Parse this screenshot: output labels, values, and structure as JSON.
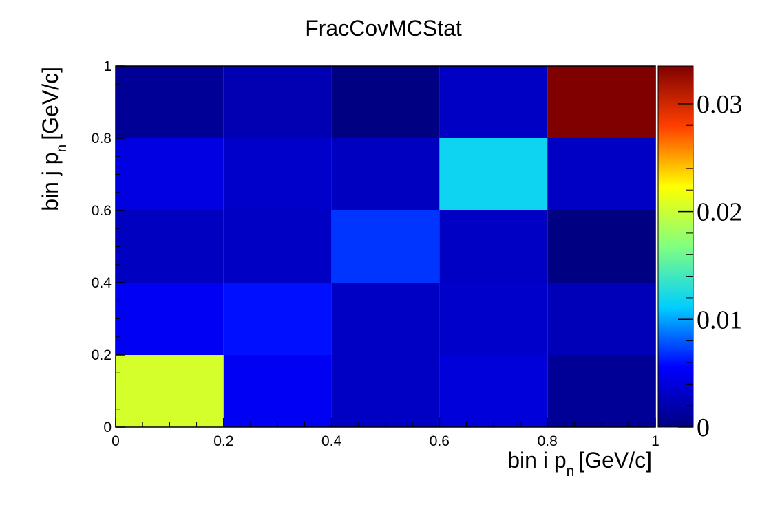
{
  "chart_data": {
    "type": "heatmap",
    "title": "FracCovMCStat",
    "xlabel": {
      "main": "bin i p",
      "sub": "n",
      "unit": "[GeV/c]"
    },
    "ylabel": {
      "main": "bin j p",
      "sub": "n",
      "unit": "[GeV/c]"
    },
    "x_edges": [
      0,
      0.2,
      0.4,
      0.6,
      0.8,
      1
    ],
    "y_edges": [
      0,
      0.2,
      0.4,
      0.6,
      0.8,
      1
    ],
    "xlim": [
      0,
      1
    ],
    "ylim": [
      0,
      1
    ],
    "x_ticks": [
      {
        "value": 0,
        "label": "0"
      },
      {
        "value": 0.2,
        "label": "0.2"
      },
      {
        "value": 0.4,
        "label": "0.4"
      },
      {
        "value": 0.6,
        "label": "0.6"
      },
      {
        "value": 0.8,
        "label": "0.8"
      },
      {
        "value": 1,
        "label": "1"
      }
    ],
    "y_ticks": [
      {
        "value": 0,
        "label": "0"
      },
      {
        "value": 0.2,
        "label": "0.2"
      },
      {
        "value": 0.4,
        "label": "0.4"
      },
      {
        "value": 0.6,
        "label": "0.6"
      },
      {
        "value": 0.8,
        "label": "0.8"
      },
      {
        "value": 1,
        "label": "1"
      }
    ],
    "values": [
      [
        0.0205,
        0.005,
        0.003,
        0.004,
        0.001
      ],
      [
        0.005,
        0.006,
        0.003,
        0.0033,
        0.0025
      ],
      [
        0.0028,
        0.003,
        0.007,
        0.003,
        0.0001
      ],
      [
        0.0042,
        0.0033,
        0.0028,
        0.0118,
        0.003
      ],
      [
        0.001,
        0.0022,
        0.0001,
        0.003,
        0.0335
      ]
    ],
    "values_layout": "values[row][col], row 0 = lowest y bin, col 0 = lowest x bin",
    "zlim": [
      0,
      0.0335
    ],
    "colorbar_ticks": [
      {
        "value": 0,
        "label": "0"
      },
      {
        "value": 0.01,
        "label": "0.01"
      },
      {
        "value": 0.02,
        "label": "0.02"
      },
      {
        "value": 0.03,
        "label": "0.03"
      }
    ],
    "colormap": [
      "#000080",
      "#0000ff",
      "#00cfff",
      "#80ff80",
      "#ffff00",
      "#ff3f00",
      "#800000"
    ],
    "grid": false,
    "legend": "none"
  }
}
